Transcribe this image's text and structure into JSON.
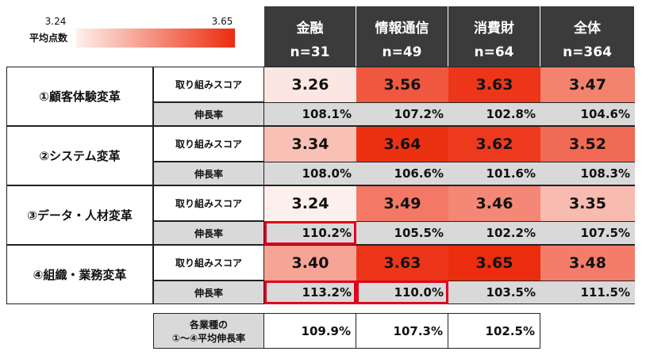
{
  "legend": {
    "label": "平均点数",
    "min": "3.24",
    "max": "3.65"
  },
  "columns": [
    {
      "name": "金融",
      "n": "n=31"
    },
    {
      "name": "情報通信",
      "n": "n=49"
    },
    {
      "name": "消費財",
      "n": "n=64"
    },
    {
      "name": "全体",
      "n": "n=364"
    }
  ],
  "groups": [
    {
      "label": "①顧客体験変革",
      "score_label": "取り組みスコア",
      "scores": [
        "3.26",
        "3.56",
        "3.63",
        "3.47"
      ],
      "growth_label": "伸長率",
      "growth": [
        "108.1%",
        "107.2%",
        "102.8%",
        "104.6%"
      ],
      "highlighted": []
    },
    {
      "label": "②システム変革",
      "score_label": "取り組みスコア",
      "scores": [
        "3.34",
        "3.64",
        "3.62",
        "3.52"
      ],
      "growth_label": "伸長率",
      "growth": [
        "108.0%",
        "106.6%",
        "101.6%",
        "108.3%"
      ],
      "highlighted": []
    },
    {
      "label": "③データ・人材変革",
      "score_label": "取り組みスコア",
      "scores": [
        "3.24",
        "3.49",
        "3.46",
        "3.35"
      ],
      "growth_label": "伸長率",
      "growth": [
        "110.2%",
        "105.5%",
        "102.2%",
        "107.5%"
      ],
      "highlighted": [
        0
      ]
    },
    {
      "label": "④組織・業務変革",
      "score_label": "取り組みスコア",
      "scores": [
        "3.40",
        "3.63",
        "3.65",
        "3.48"
      ],
      "growth_label": "伸長率",
      "growth": [
        "113.2%",
        "110.0%",
        "103.5%",
        "111.5%"
      ],
      "highlighted": [
        0,
        1
      ]
    }
  ],
  "footer": {
    "label_lines": [
      "各業種の",
      "①～④平均伸長率"
    ],
    "values": [
      "109.9%",
      "107.3%",
      "102.5%"
    ]
  }
}
